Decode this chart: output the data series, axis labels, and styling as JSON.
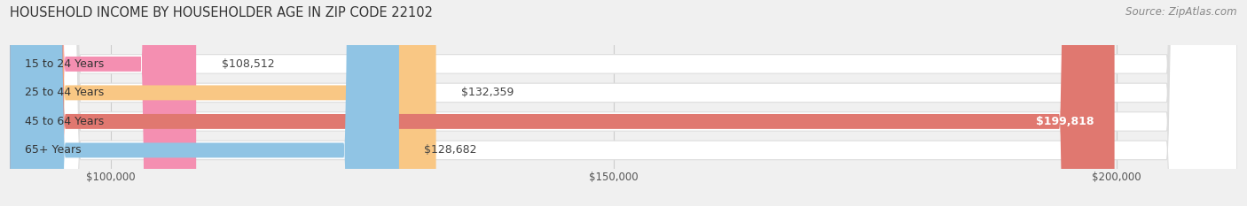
{
  "title": "HOUSEHOLD INCOME BY HOUSEHOLDER AGE IN ZIP CODE 22102",
  "source": "Source: ZipAtlas.com",
  "categories": [
    "15 to 24 Years",
    "25 to 44 Years",
    "45 to 64 Years",
    "65+ Years"
  ],
  "values": [
    108512,
    132359,
    199818,
    128682
  ],
  "bar_colors": [
    "#f48fb1",
    "#f9c784",
    "#e07870",
    "#90c4e4"
  ],
  "value_labels": [
    "$108,512",
    "$132,359",
    "$199,818",
    "$128,682"
  ],
  "xmin": 90000,
  "xmax": 212000,
  "xticks": [
    100000,
    150000,
    200000
  ],
  "xtick_labels": [
    "$100,000",
    "$150,000",
    "$200,000"
  ],
  "background_color": "#f0f0f0",
  "title_fontsize": 10.5,
  "source_fontsize": 8.5,
  "tick_fontsize": 8.5,
  "label_fontsize": 9,
  "bar_height": 0.52
}
